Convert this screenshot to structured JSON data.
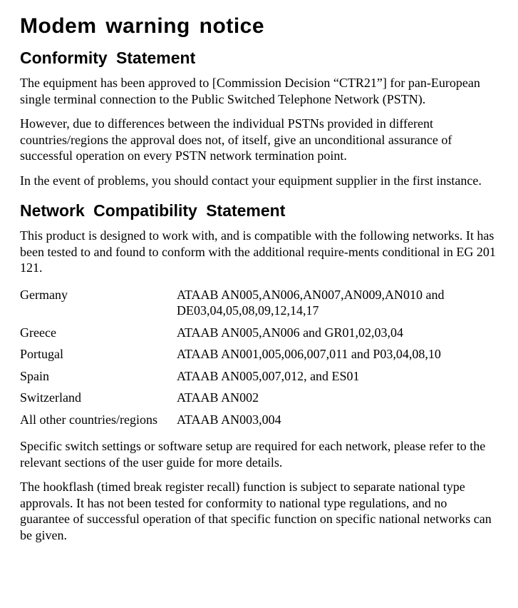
{
  "title": "Modem warning notice",
  "sections": {
    "conformity": {
      "heading": "Conformity  Statement",
      "p1": "The equipment has been approved to [Commission Decision “CTR21”] for pan-European single terminal connection to the Public Switched Telephone Network (PSTN).",
      "p2": "However, due to differences between the individual PSTNs provided in different countries/regions the approval does not, of itself, give an unconditional assurance of successful operation on every PSTN network termination point.",
      "p3": "In the event of problems, you should contact your equipment supplier in the first instance."
    },
    "network": {
      "heading": "Network  Compatibility  Statement",
      "p1": "This product is designed to work with, and is compatible with the following networks. It has been tested to and found to conform with the additional require-ments conditional in EG 201 121.",
      "table": {
        "rows": [
          {
            "country": "Germany",
            "codes": "ATAAB AN005,AN006,AN007,AN009,AN010 and DE03,04,05,08,09,12,14,17"
          },
          {
            "country": "Greece",
            "codes": "ATAAB AN005,AN006 and GR01,02,03,04"
          },
          {
            "country": "Portugal",
            "codes": "ATAAB AN001,005,006,007,011 and P03,04,08,10"
          },
          {
            "country": "Spain",
            "codes": "ATAAB AN005,007,012, and ES01"
          },
          {
            "country": "Switzerland",
            "codes": "ATAAB AN002"
          },
          {
            "country": "All other countries/regions",
            "codes": "ATAAB AN003,004"
          }
        ]
      },
      "p2": "Specific switch settings or software setup are required for each network, please refer to the relevant sections of the user guide for more details.",
      "p3": "The hookflash (timed break register recall) function is subject to separate national type approvals. It has not been tested for conformity to national type regulations, and no guarantee of successful operation of that specific function on specific national networks can be given."
    }
  }
}
